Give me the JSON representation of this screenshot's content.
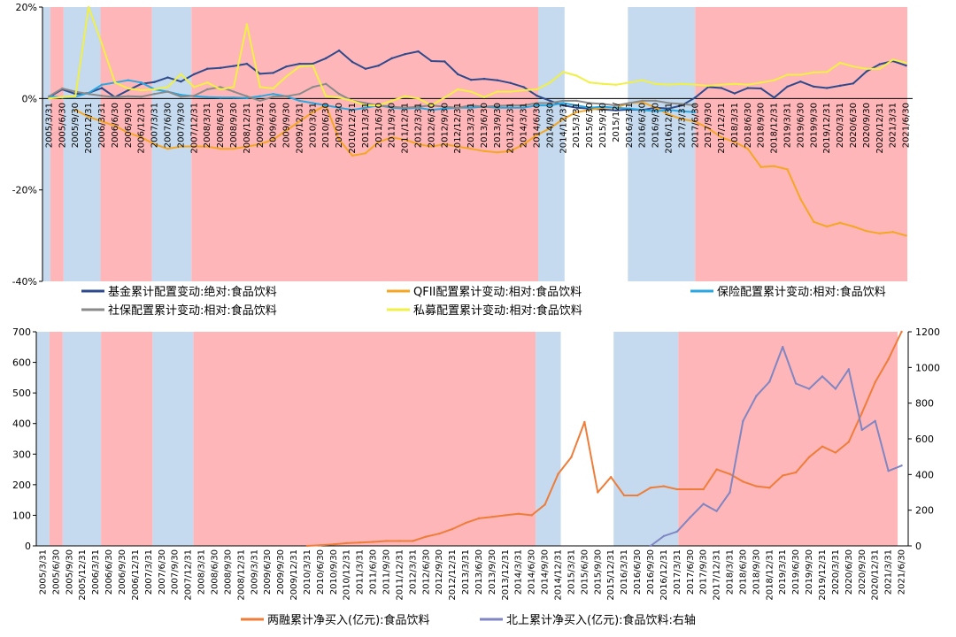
{
  "colors": {
    "red_band": "#ffb6b9",
    "blue_band": "#c5daee",
    "fund": "#2e4a8c",
    "qfii": "#f5a623",
    "insurance": "#2aa7e0",
    "social_security": "#8a8a8a",
    "private_fund": "#f0f046",
    "margin": "#ef7d3a",
    "northbound": "#7f86c2"
  },
  "chart_data": [
    {
      "type": "line",
      "panel": "top",
      "ylim": [
        -40,
        20
      ],
      "yticks": [
        20,
        0,
        -20,
        -40
      ],
      "ytick_labels": [
        "20%",
        "0%",
        "-20%",
        "-40%"
      ],
      "x": [
        "2005/3/31",
        "2005/6/30",
        "2005/9/30",
        "2005/12/31",
        "2006/3/31",
        "2006/6/30",
        "2006/9/30",
        "2006/12/31",
        "2007/3/31",
        "2007/6/30",
        "2007/9/30",
        "2007/12/31",
        "2008/3/31",
        "2008/6/30",
        "2008/9/30",
        "2008/12/31",
        "2009/3/31",
        "2009/6/30",
        "2009/9/30",
        "2009/12/31",
        "2010/3/31",
        "2010/6/30",
        "2010/9/30",
        "2010/12/31",
        "2011/3/31",
        "2011/6/30",
        "2011/9/30",
        "2011/12/31",
        "2012/3/31",
        "2012/6/30",
        "2012/9/30",
        "2012/12/31",
        "2013/3/31",
        "2013/6/30",
        "2013/9/30",
        "2013/12/31",
        "2014/3/31",
        "2014/6/30",
        "2014/9/30",
        "2014/12/31",
        "2015/3/31",
        "2015/6/30",
        "2015/9/30",
        "2015/12/31",
        "2016/3/31",
        "2016/6/30",
        "2016/9/30",
        "2016/12/31",
        "2017/3/31",
        "2017/6/30",
        "2017/9/30",
        "2017/12/31",
        "2018/3/31",
        "2018/6/30",
        "2018/9/30",
        "2018/12/31",
        "2019/3/31",
        "2019/6/30",
        "2019/9/30",
        "2019/12/31",
        "2020/3/31",
        "2020/6/30",
        "2020/9/30",
        "2020/12/31",
        "2021/3/31",
        "2021/6/30"
      ],
      "x_labels": [
        "2005/3/31",
        "2005/6/30",
        "2005/9/30",
        "2005/12/31",
        "2006/3/31",
        "2006/6/30",
        "2006/9/30",
        "2006/12/31",
        "2007/3/31",
        "2007/6/30",
        "2007/9/30",
        "2007/12/31",
        "2008/3/31",
        "2008/6/30",
        "2008/9/30",
        "2008/12/31",
        "2009/3/31",
        "2009/6/30",
        "2009/9/30",
        "2009/12/31",
        "2010/3/31",
        "2010/6/30",
        "2010/9/30",
        "2010/12/31",
        "2011/3/31",
        "2011/6/30",
        "2011/9/30",
        "2011/12/31",
        "2012/3/31",
        "2012/6/30",
        "2012/9/30",
        "2012/12/31",
        "2013/3/31",
        "2013/6/30",
        "2013/9/30",
        "2013/12/31",
        "2014/3/31",
        "2014/6/30",
        "2014/9/30",
        "2014/12/31",
        "2015/3/31",
        "2015/6/30",
        "2015/9/30",
        "2015/12/",
        "2016/3/31",
        "2016/6/30",
        "2016/9/30",
        "2016/12/31",
        "2017/3/31",
        "2017/6/30",
        "2017/9/30",
        "2017/12/31",
        "2018/3/31",
        "2018/6/30",
        "2018/9/30",
        "2018/12/31",
        "2019/3/31",
        "2019/6/30",
        "2019/9/30",
        "2019/12/31",
        "2020/3/31",
        "2020/6/30",
        "2020/9/30",
        "2020/12/31",
        "2021/3/31",
        "2021/6/30"
      ],
      "bands": [
        {
          "color": "blue",
          "from": 0.0,
          "to": 0.6
        },
        {
          "color": "red",
          "from": 0.6,
          "to": 1.6
        },
        {
          "color": "blue",
          "from": 1.6,
          "to": 4.4
        },
        {
          "color": "red",
          "from": 4.4,
          "to": 8.3
        },
        {
          "color": "blue",
          "from": 8.3,
          "to": 11.3
        },
        {
          "color": "red",
          "from": 11.3,
          "to": 37.6
        },
        {
          "color": "blue",
          "from": 37.6,
          "to": 39.6
        },
        {
          "color": "blue",
          "from": 44.4,
          "to": 49.5
        },
        {
          "color": "red",
          "from": 49.5,
          "to": 65.6
        }
      ],
      "series": [
        {
          "name": "基金累计配置变动:绝对:食品饮料",
          "color_key": "fund",
          "values": [
            0.3,
            2.0,
            1.0,
            1.2,
            2.3,
            0.3,
            1.8,
            3.2,
            3.6,
            4.6,
            3.7,
            5.3,
            6.5,
            6.7,
            7.1,
            7.6,
            5.4,
            5.6,
            7.0,
            7.6,
            7.6,
            8.8,
            10.5,
            8.0,
            6.5,
            7.2,
            8.8,
            9.7,
            10.3,
            8.2,
            8.1,
            5.3,
            4.1,
            4.3,
            4.0,
            3.4,
            2.5,
            0.6,
            -0.5,
            -1.5,
            -2.0,
            -2.2,
            -2.4,
            -2.6,
            -2.4,
            -2.5,
            -2.0,
            -2.2,
            -1.5,
            0.2,
            2.5,
            2.3,
            1.1,
            2.3,
            2.2,
            0.2,
            2.6,
            3.7,
            2.6,
            2.3,
            2.8,
            3.3,
            5.9,
            7.5,
            8.2,
            7.2
          ]
        },
        {
          "name": "QFII配置累计变动:相对:食品饮料",
          "color_key": "qfii",
          "values": [
            null,
            null,
            -2.5,
            -4.0,
            -5.0,
            -6.0,
            -7.5,
            -8.5,
            -10.0,
            -11.0,
            -10.5,
            -10.5,
            -10.5,
            -11.0,
            -11.0,
            -10.5,
            -10.0,
            -9.0,
            -7.0,
            -5.0,
            -3.0,
            -1.5,
            -9.0,
            -12.5,
            -12.0,
            -9.5,
            -8.5,
            -9.0,
            -10.0,
            -10.5,
            -10.0,
            -10.5,
            -11.0,
            -11.5,
            -11.8,
            -11.5,
            -10.0,
            -8.0,
            -6.5,
            -4.5,
            -3.0,
            -2.5,
            -2.0,
            -2.0,
            -1.0,
            -0.8,
            -2.0,
            -3.5,
            -4.5,
            -5.0,
            -6.5,
            -8.5,
            -9.5,
            -11.0,
            -15.0,
            -14.8,
            -15.5,
            -22.0,
            -27.0,
            -28.0,
            -27.2,
            -28.0,
            -29.0,
            -29.5,
            -29.2,
            -30.0
          ]
        },
        {
          "name": "保险配置累计变动:相对:食品饮料",
          "color_key": "insurance",
          "values": [
            0.5,
            0.2,
            0.4,
            1.2,
            3.0,
            3.5,
            4.0,
            3.5,
            2.0,
            1.5,
            0.8,
            0.5,
            0.3,
            0.2,
            0.2,
            0.1,
            0.5,
            1.0,
            0.5,
            -0.5,
            -1.0,
            -1.5,
            -2.0,
            -2.5,
            -2.0,
            -1.5,
            -2.0,
            -2.2,
            -2.0,
            -2.5,
            -2.2,
            -2.0,
            -2.0,
            -1.8,
            -2.0,
            -2.0,
            -2.0,
            -1.5,
            -1.5,
            -1.0,
            -1.5,
            -2.0,
            -1.8,
            -2.0,
            -2.2,
            -2.5,
            -2.8,
            -2.5,
            -2.8,
            -3.0,
            null,
            null,
            null,
            null,
            null,
            null,
            null,
            null,
            null,
            null,
            null,
            null,
            null,
            null,
            null,
            null
          ]
        },
        {
          "name": "社保配置累计变动:相对:食品饮料",
          "color_key": "social_security",
          "values": [
            0.5,
            2.2,
            1.5,
            1.0,
            0.6,
            0.3,
            0.5,
            0.4,
            1.0,
            1.5,
            0.4,
            0.6,
            2.0,
            2.5,
            1.5,
            0.5,
            -0.5,
            0.4,
            0.5,
            1.0,
            2.5,
            3.2,
            1.0,
            -0.5,
            -1.0,
            -1.5,
            -1.8,
            -2.0,
            -1.8,
            -1.5,
            -1.8,
            -2.0,
            -1.5,
            -1.8,
            -1.6,
            -1.5,
            -1.5,
            -1.0,
            -1.0,
            -0.5,
            -0.5,
            -1.0,
            -1.2,
            -1.5,
            -1.0,
            -0.5,
            -0.5,
            -1.0,
            -1.2,
            -1.5,
            null,
            null,
            null,
            null,
            null,
            null,
            null,
            null,
            null,
            null,
            null,
            null,
            null,
            null,
            null,
            null
          ]
        },
        {
          "name": "私募配置累计变动:相对:食品饮料",
          "color_key": "private_fund",
          "values": [
            0.0,
            0.3,
            0.5,
            20.0,
            12.0,
            3.5,
            2.2,
            1.8,
            2.0,
            2.5,
            5.3,
            2.5,
            3.5,
            2.0,
            2.5,
            16.2,
            2.5,
            2.2,
            4.8,
            7.0,
            7.2,
            0.5,
            0.2,
            -0.5,
            -1.5,
            -1.5,
            -0.5,
            0.5,
            0.0,
            -1.5,
            0.2,
            2.0,
            1.5,
            0.3,
            1.5,
            1.5,
            1.8,
            2.0,
            3.5,
            5.8,
            5.0,
            3.5,
            3.2,
            3.0,
            3.5,
            4.0,
            3.2,
            3.0,
            3.2,
            3.0,
            2.8,
            3.0,
            3.2,
            3.0,
            3.5,
            4.0,
            5.2,
            5.2,
            5.7,
            5.8,
            7.8,
            7.0,
            6.5,
            6.5,
            8.5,
            7.8
          ]
        }
      ],
      "legend": [
        "基金累计配置变动:绝对:食品饮料",
        "QFII配置累计变动:相对:食品饮料",
        "保险配置累计变动:相对:食品饮料",
        "社保配置累计变动:相对:食品饮料",
        "私募配置累计变动:相对:食品饮料"
      ]
    },
    {
      "type": "line",
      "panel": "bottom",
      "ylim": [
        0,
        700
      ],
      "yticks": [
        0,
        100,
        200,
        300,
        400,
        500,
        600,
        700
      ],
      "ytick_labels": [
        "0",
        "100",
        "200",
        "300",
        "400",
        "500",
        "600",
        "700"
      ],
      "y2lim": [
        0,
        1200
      ],
      "y2ticks": [
        0,
        200,
        400,
        600,
        800,
        1000,
        1200
      ],
      "y2tick_labels": [
        "0",
        "200",
        "400",
        "600",
        "800",
        "1000",
        "1200"
      ],
      "x": [
        "2005/3/31",
        "2005/6/30",
        "2005/9/30",
        "2005/12/31",
        "2006/3/31",
        "2006/6/30",
        "2006/9/30",
        "2006/12/31",
        "2007/3/31",
        "2007/6/30",
        "2007/9/30",
        "2007/12/31",
        "2008/3/31",
        "2008/6/30",
        "2008/9/30",
        "2008/12/31",
        "2009/3/31",
        "2009/6/30",
        "2009/9/30",
        "2009/12/31",
        "2010/3/31",
        "2010/6/30",
        "2010/9/30",
        "2010/12/31",
        "2011/3/31",
        "2011/6/30",
        "2011/9/30",
        "2011/12/31",
        "2012/3/31",
        "2012/6/30",
        "2012/9/30",
        "2012/12/31",
        "2013/3/31",
        "2013/6/30",
        "2013/9/30",
        "2013/12/31",
        "2014/3/31",
        "2014/6/30",
        "2014/9/30",
        "2014/12/31",
        "2015/3/31",
        "2015/6/30",
        "2015/9/30",
        "2015/12/31",
        "2016/3/31",
        "2016/6/30",
        "2016/9/30",
        "2016/12/31",
        "2017/3/31",
        "2017/6/30",
        "2017/9/30",
        "2017/12/31",
        "2018/3/31",
        "2018/6/30",
        "2018/9/30",
        "2018/12/31",
        "2019/3/31",
        "2019/6/30",
        "2019/9/30",
        "2019/12/31",
        "2020/3/31",
        "2020/6/30",
        "2020/9/30",
        "2020/12/31",
        "2021/3/31",
        "2021/6/30"
      ],
      "bands": [
        {
          "color": "blue",
          "from": 0.0,
          "to": 1.0
        },
        {
          "color": "red",
          "from": 1.0,
          "to": 2.0
        },
        {
          "color": "blue",
          "from": 2.0,
          "to": 4.9
        },
        {
          "color": "red",
          "from": 4.9,
          "to": 8.8
        },
        {
          "color": "blue",
          "from": 8.8,
          "to": 11.9
        },
        {
          "color": "red",
          "from": 11.9,
          "to": 37.8
        },
        {
          "color": "blue",
          "from": 37.8,
          "to": 39.7
        },
        {
          "color": "blue",
          "from": 43.7,
          "to": 48.6
        },
        {
          "color": "red",
          "from": 48.6,
          "to": 65.2
        }
      ],
      "series": [
        {
          "name": "两融累计净买入(亿元):食品饮料",
          "color_key": "margin",
          "axis": "left",
          "values": [
            null,
            null,
            null,
            null,
            null,
            null,
            null,
            null,
            null,
            null,
            null,
            null,
            null,
            null,
            null,
            null,
            null,
            null,
            null,
            null,
            0,
            2,
            5,
            9,
            11,
            13,
            16,
            16,
            16,
            30,
            40,
            55,
            75,
            90,
            95,
            100,
            105,
            100,
            135,
            235,
            290,
            405,
            175,
            225,
            165,
            165,
            190,
            195,
            185,
            185,
            185,
            250,
            235,
            210,
            195,
            190,
            230,
            240,
            290,
            325,
            305,
            340,
            435,
            535,
            610,
            700
          ]
        },
        {
          "name": "北上累计净买入(亿元):食品饮料:右轴",
          "color_key": "northbound",
          "axis": "right",
          "values": [
            null,
            null,
            null,
            null,
            null,
            null,
            null,
            null,
            null,
            null,
            null,
            null,
            null,
            null,
            null,
            null,
            null,
            null,
            null,
            null,
            null,
            null,
            null,
            null,
            null,
            null,
            null,
            null,
            null,
            null,
            null,
            null,
            null,
            null,
            null,
            null,
            null,
            null,
            null,
            null,
            null,
            null,
            null,
            null,
            null,
            null,
            0,
            55,
            80,
            160,
            235,
            195,
            300,
            700,
            840,
            920,
            1115,
            910,
            880,
            950,
            880,
            990,
            650,
            700,
            420,
            450
          ]
        }
      ],
      "legend": [
        "两融累计净买入(亿元):食品饮料",
        "北上累计净买入(亿元):食品饮料:右轴"
      ]
    }
  ]
}
